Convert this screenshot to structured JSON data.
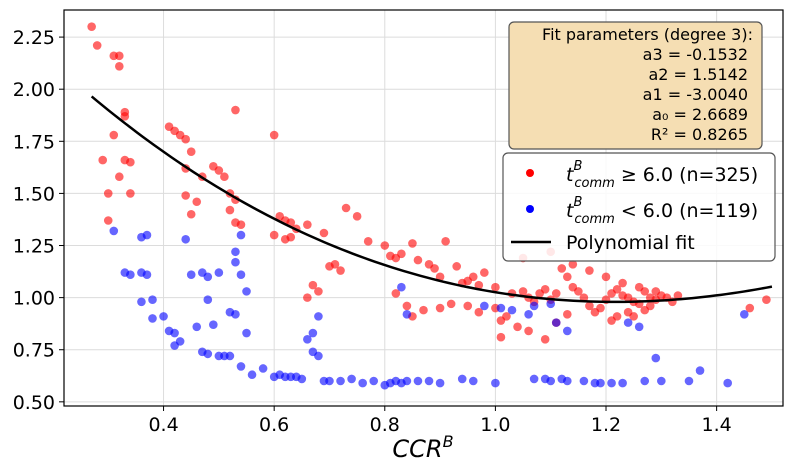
{
  "chart_data": {
    "type": "scatter",
    "title": "",
    "xlabel_base": "CCR",
    "xlabel_sup": "B",
    "ylabel": "",
    "xlim": [
      0.22,
      1.52
    ],
    "ylim": [
      0.48,
      2.38
    ],
    "xticks": [
      0.4,
      0.6,
      0.8,
      1.0,
      1.2,
      1.4
    ],
    "xtick_labels": [
      "0.4",
      "0.6",
      "0.8",
      "1.0",
      "1.2",
      "1.4"
    ],
    "yticks": [
      0.5,
      0.75,
      1.0,
      1.25,
      1.5,
      1.75,
      2.0,
      2.25
    ],
    "ytick_labels": [
      "0.50",
      "0.75",
      "1.00",
      "1.25",
      "1.50",
      "1.75",
      "2.00",
      "2.25"
    ],
    "grid": true,
    "fit_box": {
      "title": "Fit parameters (degree 3):",
      "lines": [
        "a3 = -0.1532",
        "a2 = 1.5142",
        "a1 = -3.0040",
        "a₀ = 2.6689",
        "R² = 0.8265"
      ]
    },
    "legend": {
      "placement": "right",
      "entries": [
        {
          "prefix": "t",
          "sup": "B",
          "sub": "comm",
          "suffix": " ≥ 6.0 (n=325)",
          "color": "#ff0000",
          "kind": "marker"
        },
        {
          "prefix": "t",
          "sup": "B",
          "sub": "comm",
          "suffix": " < 6.0 (n=119)",
          "color": "#0000ff",
          "kind": "marker"
        },
        {
          "label": "Polynomial fit",
          "color": "#000000",
          "kind": "line"
        }
      ]
    },
    "fit": {
      "name": "Polynomial fit",
      "coefficients": {
        "a3": -0.1532,
        "a2": 1.5142,
        "a1": -3.004,
        "a0": 2.6689
      },
      "x_range": [
        0.27,
        1.5
      ],
      "color": "#000000"
    },
    "series": [
      {
        "name": "t_comm^B >= 6.0 (n=325)",
        "color": "#ff0000",
        "points": [
          [
            0.27,
            2.3
          ],
          [
            0.28,
            2.21
          ],
          [
            0.31,
            2.16
          ],
          [
            0.32,
            2.16
          ],
          [
            0.32,
            2.11
          ],
          [
            0.33,
            1.89
          ],
          [
            0.33,
            1.87
          ],
          [
            0.31,
            1.78
          ],
          [
            0.29,
            1.66
          ],
          [
            0.33,
            1.66
          ],
          [
            0.34,
            1.65
          ],
          [
            0.32,
            1.58
          ],
          [
            0.3,
            1.5
          ],
          [
            0.34,
            1.5
          ],
          [
            0.3,
            1.37
          ],
          [
            0.41,
            1.82
          ],
          [
            0.42,
            1.8
          ],
          [
            0.43,
            1.78
          ],
          [
            0.44,
            1.76
          ],
          [
            0.45,
            1.7
          ],
          [
            0.44,
            1.62
          ],
          [
            0.47,
            1.58
          ],
          [
            0.49,
            1.63
          ],
          [
            0.5,
            1.61
          ],
          [
            0.51,
            1.58
          ],
          [
            0.53,
            1.9
          ],
          [
            0.52,
            1.5
          ],
          [
            0.53,
            1.47
          ],
          [
            0.52,
            1.42
          ],
          [
            0.53,
            1.36
          ],
          [
            0.54,
            1.35
          ],
          [
            0.44,
            1.49
          ],
          [
            0.46,
            1.46
          ],
          [
            0.45,
            1.4
          ],
          [
            0.6,
            1.78
          ],
          [
            0.61,
            1.39
          ],
          [
            0.62,
            1.37
          ],
          [
            0.63,
            1.36
          ],
          [
            0.6,
            1.3
          ],
          [
            0.62,
            1.28
          ],
          [
            0.63,
            1.29
          ],
          [
            0.64,
            1.33
          ],
          [
            0.66,
            1.35
          ],
          [
            0.69,
            1.31
          ],
          [
            0.71,
            1.16
          ],
          [
            0.7,
            1.15
          ],
          [
            0.72,
            1.13
          ],
          [
            0.67,
            1.06
          ],
          [
            0.66,
            1.0
          ],
          [
            0.68,
            1.03
          ],
          [
            0.73,
            1.43
          ],
          [
            0.75,
            1.39
          ],
          [
            0.77,
            1.27
          ],
          [
            0.8,
            1.25
          ],
          [
            0.81,
            1.2
          ],
          [
            0.82,
            1.19
          ],
          [
            0.83,
            1.21
          ],
          [
            0.85,
            1.26
          ],
          [
            0.86,
            1.18
          ],
          [
            0.88,
            1.16
          ],
          [
            0.89,
            1.14
          ],
          [
            0.9,
            1.1
          ],
          [
            0.91,
            1.27
          ],
          [
            0.93,
            1.15
          ],
          [
            0.94,
            1.07
          ],
          [
            0.95,
            1.08
          ],
          [
            0.96,
            1.1
          ],
          [
            0.97,
            1.06
          ],
          [
            0.98,
            1.12
          ],
          [
            1.0,
            1.05
          ],
          [
            0.82,
            1.02
          ],
          [
            0.84,
            0.96
          ],
          [
            0.85,
            0.91
          ],
          [
            0.87,
            0.94
          ],
          [
            0.9,
            0.95
          ],
          [
            0.92,
            0.97
          ],
          [
            0.95,
            0.96
          ],
          [
            0.97,
            0.93
          ],
          [
            1.0,
            0.95
          ],
          [
            1.01,
            0.89
          ],
          [
            1.02,
            0.91
          ],
          [
            1.03,
            1.02
          ],
          [
            1.05,
            1.03
          ],
          [
            1.06,
            1.0
          ],
          [
            1.07,
            0.98
          ],
          [
            1.08,
            1.02
          ],
          [
            1.09,
            1.04
          ],
          [
            1.1,
            0.99
          ],
          [
            1.11,
            1.02
          ],
          [
            1.12,
            1.14
          ],
          [
            1.13,
            1.1
          ],
          [
            1.14,
            1.05
          ],
          [
            1.15,
            1.03
          ],
          [
            1.16,
            1.0
          ],
          [
            1.17,
            0.96
          ],
          [
            1.18,
            0.93
          ],
          [
            1.19,
            0.95
          ],
          [
            1.2,
            0.99
          ],
          [
            1.21,
            1.02
          ],
          [
            1.22,
            1.04
          ],
          [
            1.23,
            1.01
          ],
          [
            1.24,
            1.0
          ],
          [
            1.25,
            0.98
          ],
          [
            1.26,
            0.97
          ],
          [
            1.27,
            1.03
          ],
          [
            1.28,
            1.0
          ],
          [
            1.29,
            0.99
          ],
          [
            1.3,
            1.01
          ],
          [
            1.31,
            1.0
          ],
          [
            1.32,
            0.98
          ],
          [
            1.21,
            0.89
          ],
          [
            1.22,
            0.91
          ],
          [
            1.24,
            0.93
          ],
          [
            1.25,
            0.91
          ],
          [
            1.27,
            0.94
          ],
          [
            1.28,
            0.96
          ],
          [
            1.13,
            0.92
          ],
          [
            1.11,
            0.88
          ],
          [
            1.09,
            0.8
          ],
          [
            1.06,
            0.84
          ],
          [
            1.04,
            0.86
          ],
          [
            1.05,
            1.19
          ],
          [
            1.1,
            1.22
          ],
          [
            1.14,
            1.16
          ],
          [
            1.17,
            1.13
          ],
          [
            1.2,
            1.1
          ],
          [
            1.23,
            1.07
          ],
          [
            1.26,
            1.05
          ],
          [
            1.29,
            1.03
          ],
          [
            1.33,
            1.01
          ],
          [
            1.49,
            0.99
          ],
          [
            1.46,
            0.95
          ],
          [
            1.01,
            0.81
          ]
        ]
      },
      {
        "name": "t_comm^B < 6.0 (n=119)",
        "color": "#0000ff",
        "points": [
          [
            0.31,
            1.32
          ],
          [
            0.36,
            1.29
          ],
          [
            0.37,
            1.3
          ],
          [
            0.33,
            1.12
          ],
          [
            0.34,
            1.11
          ],
          [
            0.36,
            1.12
          ],
          [
            0.37,
            1.11
          ],
          [
            0.36,
            0.98
          ],
          [
            0.38,
            0.99
          ],
          [
            0.38,
            0.9
          ],
          [
            0.4,
            0.91
          ],
          [
            0.41,
            0.84
          ],
          [
            0.42,
            0.83
          ],
          [
            0.43,
            0.79
          ],
          [
            0.42,
            0.77
          ],
          [
            0.44,
            1.28
          ],
          [
            0.45,
            1.11
          ],
          [
            0.47,
            1.12
          ],
          [
            0.48,
            1.1
          ],
          [
            0.5,
            1.12
          ],
          [
            0.48,
            0.99
          ],
          [
            0.49,
            0.87
          ],
          [
            0.46,
            0.86
          ],
          [
            0.47,
            0.74
          ],
          [
            0.48,
            0.73
          ],
          [
            0.5,
            0.72
          ],
          [
            0.51,
            0.72
          ],
          [
            0.52,
            0.72
          ],
          [
            0.53,
            1.22
          ],
          [
            0.54,
            1.3
          ],
          [
            0.53,
            1.17
          ],
          [
            0.54,
            1.11
          ],
          [
            0.55,
            1.03
          ],
          [
            0.52,
            0.93
          ],
          [
            0.53,
            0.92
          ],
          [
            0.55,
            0.83
          ],
          [
            0.54,
            0.67
          ],
          [
            0.56,
            0.63
          ],
          [
            0.58,
            0.66
          ],
          [
            0.6,
            0.62
          ],
          [
            0.61,
            0.63
          ],
          [
            0.62,
            0.62
          ],
          [
            0.63,
            0.62
          ],
          [
            0.64,
            0.62
          ],
          [
            0.65,
            0.61
          ],
          [
            0.67,
            0.74
          ],
          [
            0.68,
            0.72
          ],
          [
            0.66,
            0.8
          ],
          [
            0.67,
            0.83
          ],
          [
            0.68,
            0.91
          ],
          [
            0.69,
            0.6
          ],
          [
            0.7,
            0.6
          ],
          [
            0.72,
            0.6
          ],
          [
            0.74,
            0.61
          ],
          [
            0.76,
            0.59
          ],
          [
            0.78,
            0.6
          ],
          [
            0.8,
            0.58
          ],
          [
            0.81,
            0.59
          ],
          [
            0.82,
            0.6
          ],
          [
            0.83,
            0.59
          ],
          [
            0.84,
            0.6
          ],
          [
            0.83,
            1.05
          ],
          [
            0.84,
            0.92
          ],
          [
            0.86,
            0.6
          ],
          [
            0.88,
            0.6
          ],
          [
            0.9,
            0.59
          ],
          [
            0.94,
            0.61
          ],
          [
            0.96,
            0.6
          ],
          [
            1.0,
            0.59
          ],
          [
            1.07,
            0.61
          ],
          [
            1.09,
            0.61
          ],
          [
            1.1,
            0.6
          ],
          [
            1.12,
            0.61
          ],
          [
            1.13,
            0.6
          ],
          [
            1.16,
            0.6
          ],
          [
            1.18,
            0.59
          ],
          [
            1.19,
            0.59
          ],
          [
            1.21,
            0.59
          ],
          [
            1.23,
            0.59
          ],
          [
            1.27,
            0.6
          ],
          [
            1.3,
            0.6
          ],
          [
            1.35,
            0.6
          ],
          [
            1.37,
            0.65
          ],
          [
            1.42,
            0.59
          ],
          [
            1.45,
            0.92
          ],
          [
            1.24,
            0.88
          ],
          [
            1.26,
            0.86
          ],
          [
            1.29,
            0.71
          ],
          [
            1.1,
            0.97
          ],
          [
            1.11,
            0.88
          ],
          [
            1.13,
            0.84
          ],
          [
            1.07,
            0.96
          ],
          [
            1.06,
            0.92
          ],
          [
            1.03,
            0.94
          ],
          [
            1.01,
            0.95
          ],
          [
            0.98,
            0.96
          ]
        ]
      }
    ]
  }
}
